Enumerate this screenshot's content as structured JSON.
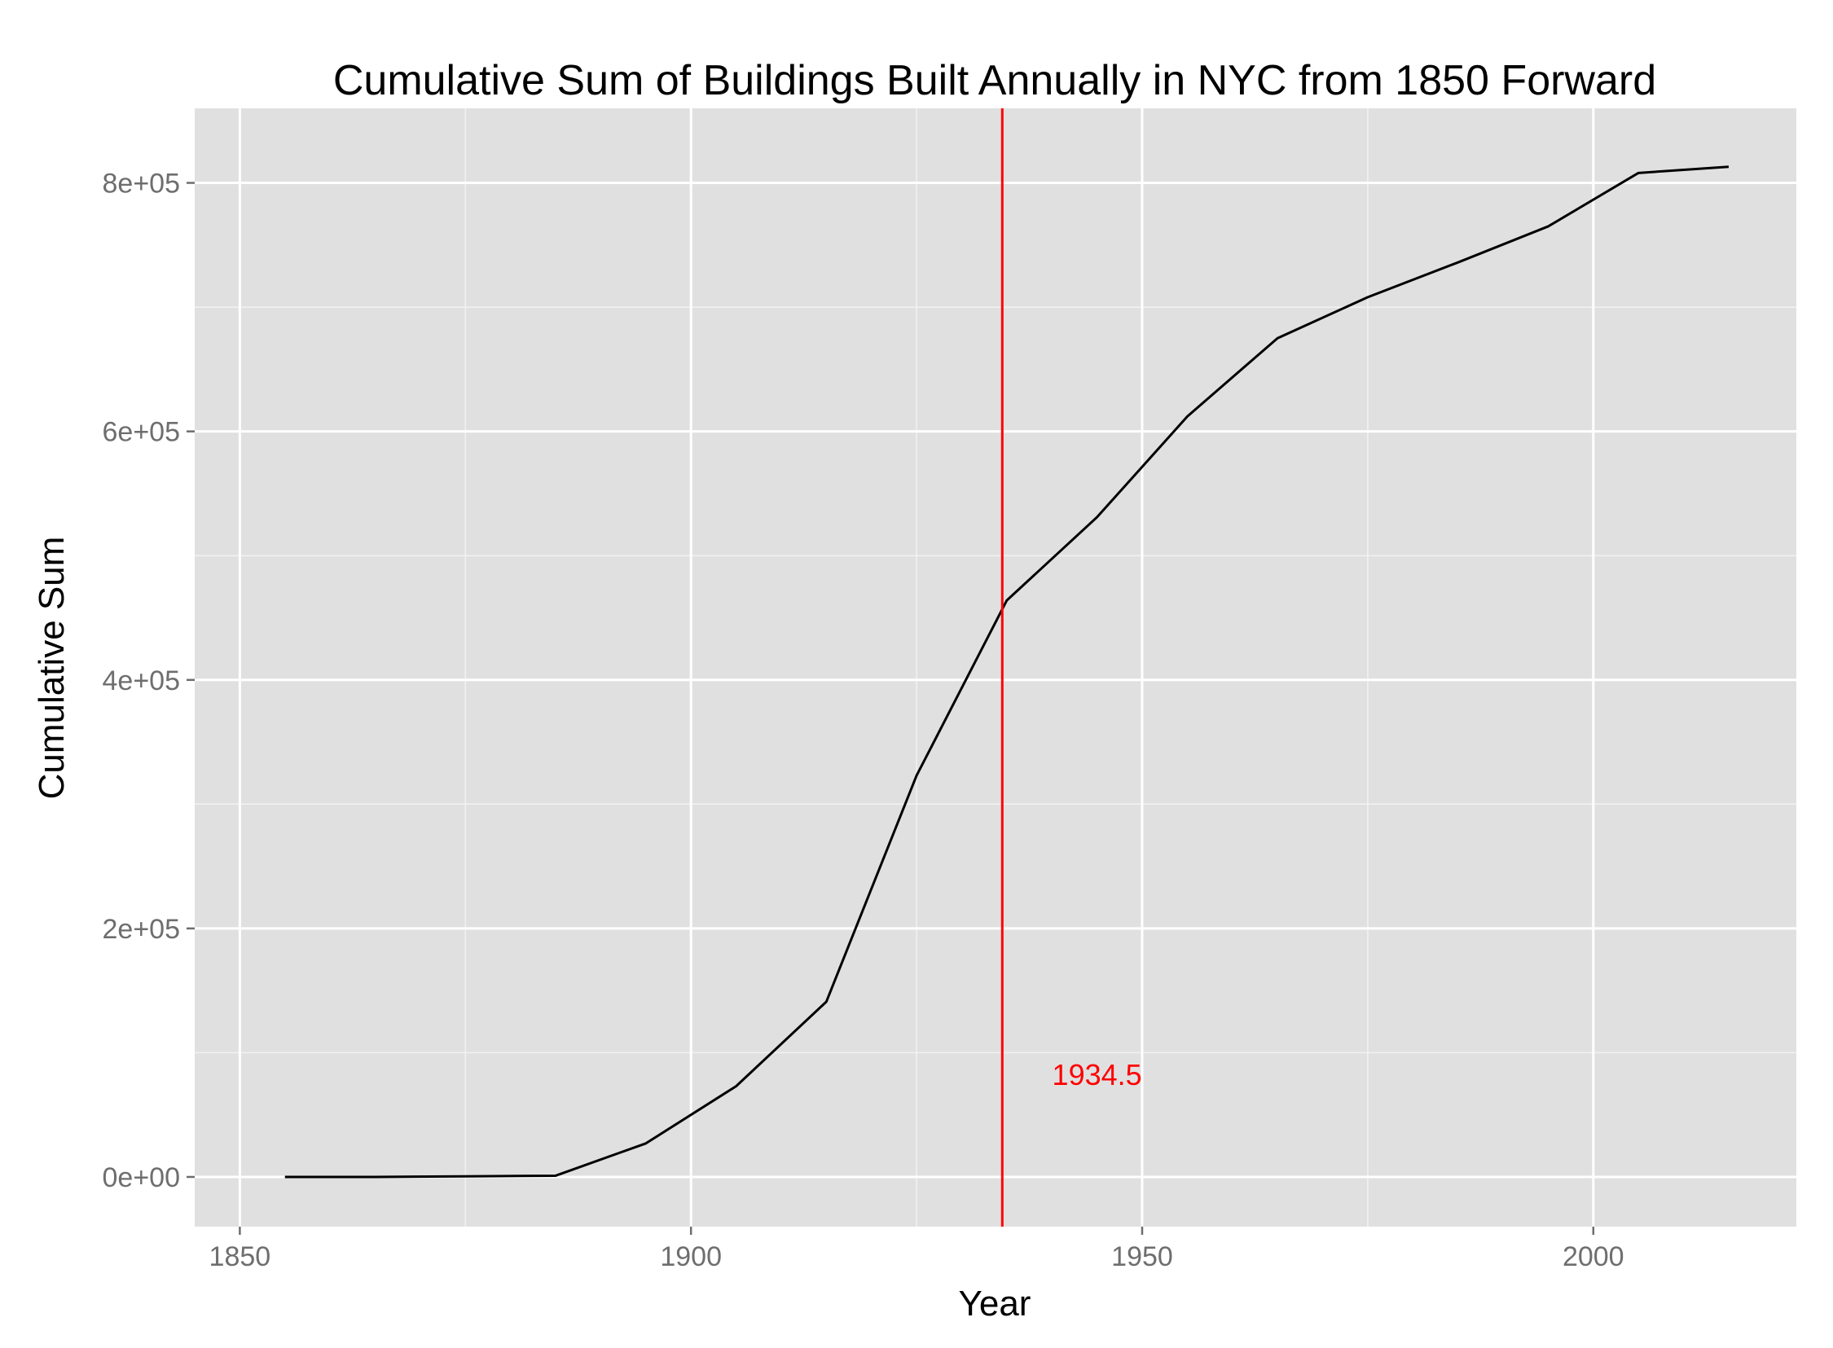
{
  "chart_data": {
    "type": "line",
    "title": "Cumulative Sum of Buildings Built Annually in NYC from 1850 Forward",
    "xlabel": "Year",
    "ylabel": "Cumulative Sum",
    "xlim": [
      1845,
      2022.5
    ],
    "ylim": [
      -40000,
      860000
    ],
    "x_ticks": [
      1850,
      1900,
      1950,
      2000
    ],
    "x_tick_labels": [
      "1850",
      "1900",
      "1950",
      "2000"
    ],
    "y_ticks": [
      0,
      200000,
      400000,
      600000,
      800000
    ],
    "y_tick_labels": [
      "0e+00",
      "2e+05",
      "4e+05",
      "6e+05",
      "8e+05"
    ],
    "grid": true,
    "panel_background": "#e0e0e0",
    "grid_color": "#ffffff",
    "series": [
      {
        "color": "#000000",
        "x": [
          1855,
          1865,
          1875,
          1885,
          1895,
          1905,
          1915,
          1925,
          1935,
          1945,
          1955,
          1965,
          1975,
          1985,
          1995,
          2005,
          2015
        ],
        "y": [
          0,
          0,
          500,
          1000,
          27000,
          73000,
          141000,
          323000,
          464000,
          531000,
          612000,
          675000,
          708000,
          736000,
          765000,
          808000,
          813000
        ]
      }
    ],
    "annotations": [
      {
        "type": "vline",
        "x": 1934.5,
        "color": "#ff0000",
        "label": "1934.5",
        "label_x": 1945,
        "label_y": 82000
      }
    ]
  }
}
